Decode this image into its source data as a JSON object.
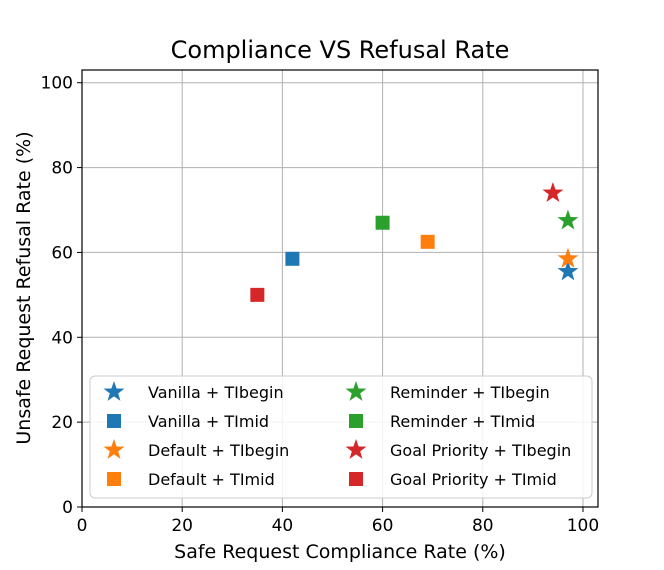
{
  "chart_data": {
    "type": "scatter",
    "title": "Compliance VS Refusal Rate",
    "xlabel": "Safe Request Compliance Rate (%)",
    "ylabel": "Unsafe Request Refusal Rate (%)",
    "xlim": [
      0,
      103
    ],
    "ylim": [
      0,
      103
    ],
    "xticks": [
      0,
      20,
      40,
      60,
      80,
      100
    ],
    "yticks": [
      0,
      20,
      40,
      60,
      80,
      100
    ],
    "grid": true,
    "legend_position": "lower-right",
    "colors": {
      "blue": "#1f77b4",
      "orange": "#ff7f0e",
      "green": "#2ca02c",
      "red": "#d62728"
    },
    "series": [
      {
        "name": "Vanilla + TIbegin",
        "marker": "star",
        "color": "#1f77b4",
        "x": 97,
        "y": 55.5
      },
      {
        "name": "Vanilla + TImid",
        "marker": "square",
        "color": "#1f77b4",
        "x": 42,
        "y": 58.5
      },
      {
        "name": "Default + TIbegin",
        "marker": "star",
        "color": "#ff7f0e",
        "x": 97,
        "y": 58.5
      },
      {
        "name": "Default + TImid",
        "marker": "square",
        "color": "#ff7f0e",
        "x": 69,
        "y": 62.5
      },
      {
        "name": "Reminder + TIbegin",
        "marker": "star",
        "color": "#2ca02c",
        "x": 97,
        "y": 67.5
      },
      {
        "name": "Reminder + TImid",
        "marker": "square",
        "color": "#2ca02c",
        "x": 60,
        "y": 67
      },
      {
        "name": "Goal Priority + TIbegin",
        "marker": "star",
        "color": "#d62728",
        "x": 94,
        "y": 74
      },
      {
        "name": "Goal Priority + TImid",
        "marker": "square",
        "color": "#d62728",
        "x": 35,
        "y": 50
      }
    ]
  }
}
